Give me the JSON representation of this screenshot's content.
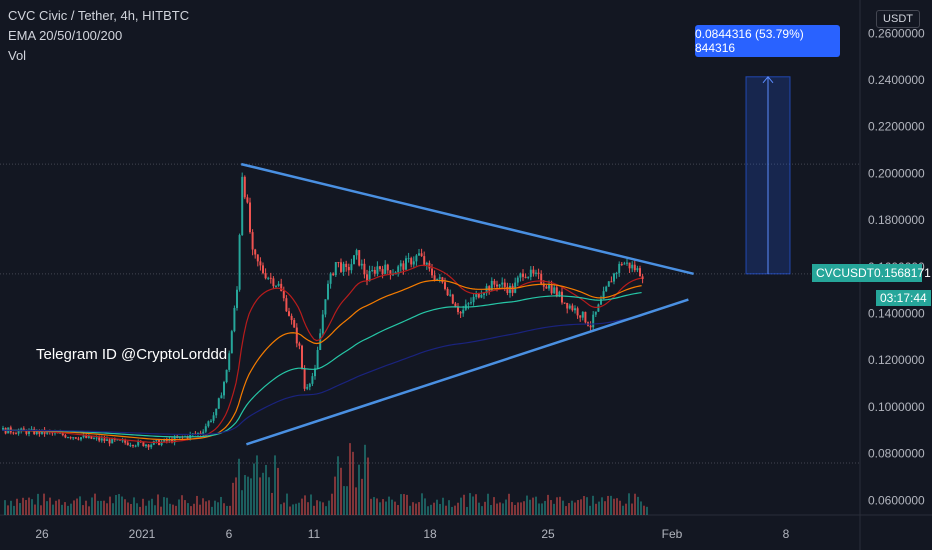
{
  "legend": {
    "symbol_line": "CVC Civic / Tether, 4h, HITBTC",
    "ema_line": "EMA 20/50/100/200",
    "vol_line": "Vol"
  },
  "watermark": "Telegram ID @CryptoLorddd",
  "currency_button": "USDT",
  "measure_label": "0.0844316 (53.79%) 844316",
  "price_tag": {
    "symbol": "CVCUSDT",
    "price": "0.1568171"
  },
  "countdown": "03:17:44",
  "colors": {
    "background": "#131722",
    "up": "#26a69a",
    "down": "#ef5350",
    "ema20": "#b71c1c",
    "ema50": "#f57c00",
    "ema100": "#26c6a6",
    "ema200": "#1a237e",
    "trendline": "#4a90e2",
    "measure": "#2962ff"
  },
  "chart_data": {
    "type": "candlestick",
    "y_tick_labels": [
      "0.0600000",
      "0.0800000",
      "0.1000000",
      "0.1200000",
      "0.1400000",
      "0.1600000",
      "0.1800000",
      "0.2000000",
      "0.2200000",
      "0.2400000",
      "0.2600000"
    ],
    "x_tick_labels": [
      "26",
      "2021",
      "6",
      "11",
      "18",
      "25",
      "Feb",
      "8"
    ],
    "ylim": [
      0.06,
      0.26
    ],
    "price_series": [
      {
        "t": 0,
        "p": 0.09
      },
      {
        "t": 8,
        "p": 0.089
      },
      {
        "t": 15,
        "p": 0.087
      },
      {
        "t": 22,
        "p": 0.085
      },
      {
        "t": 28,
        "p": 0.084
      },
      {
        "t": 33,
        "p": 0.086
      },
      {
        "t": 38,
        "p": 0.089
      },
      {
        "t": 41,
        "p": 0.098
      },
      {
        "t": 43,
        "p": 0.115
      },
      {
        "t": 45,
        "p": 0.15
      },
      {
        "t": 46,
        "p": 0.2
      },
      {
        "t": 47,
        "p": 0.185
      },
      {
        "t": 48,
        "p": 0.165
      },
      {
        "t": 50,
        "p": 0.158
      },
      {
        "t": 53,
        "p": 0.152
      },
      {
        "t": 55,
        "p": 0.14
      },
      {
        "t": 57,
        "p": 0.125
      },
      {
        "t": 58,
        "p": 0.108
      },
      {
        "t": 60,
        "p": 0.115
      },
      {
        "t": 62,
        "p": 0.148
      },
      {
        "t": 64,
        "p": 0.162
      },
      {
        "t": 66,
        "p": 0.158
      },
      {
        "t": 68,
        "p": 0.165
      },
      {
        "t": 70,
        "p": 0.155
      },
      {
        "t": 72,
        "p": 0.16
      },
      {
        "t": 75,
        "p": 0.158
      },
      {
        "t": 78,
        "p": 0.162
      },
      {
        "t": 80,
        "p": 0.165
      },
      {
        "t": 82,
        "p": 0.158
      },
      {
        "t": 85,
        "p": 0.152
      },
      {
        "t": 88,
        "p": 0.14
      },
      {
        "t": 90,
        "p": 0.145
      },
      {
        "t": 92,
        "p": 0.15
      },
      {
        "t": 95,
        "p": 0.153
      },
      {
        "t": 98,
        "p": 0.15
      },
      {
        "t": 100,
        "p": 0.158
      },
      {
        "t": 103,
        "p": 0.155
      },
      {
        "t": 106,
        "p": 0.15
      },
      {
        "t": 108,
        "p": 0.145
      },
      {
        "t": 111,
        "p": 0.14
      },
      {
        "t": 113,
        "p": 0.135
      },
      {
        "t": 115,
        "p": 0.145
      },
      {
        "t": 117,
        "p": 0.155
      },
      {
        "t": 119,
        "p": 0.162
      },
      {
        "t": 121,
        "p": 0.16
      },
      {
        "t": 123,
        "p": 0.157
      }
    ],
    "trendlines": [
      {
        "name": "upper",
        "from": {
          "t": 46,
          "p": 0.204
        },
        "to": {
          "t": 133,
          "p": 0.157
        }
      },
      {
        "name": "lower",
        "from": {
          "t": 47,
          "p": 0.084
        },
        "to": {
          "t": 132,
          "p": 0.146
        }
      }
    ],
    "measure": {
      "from_t": 140,
      "to_t": 146,
      "from_p": 0.157,
      "to_p": 0.2414
    }
  }
}
